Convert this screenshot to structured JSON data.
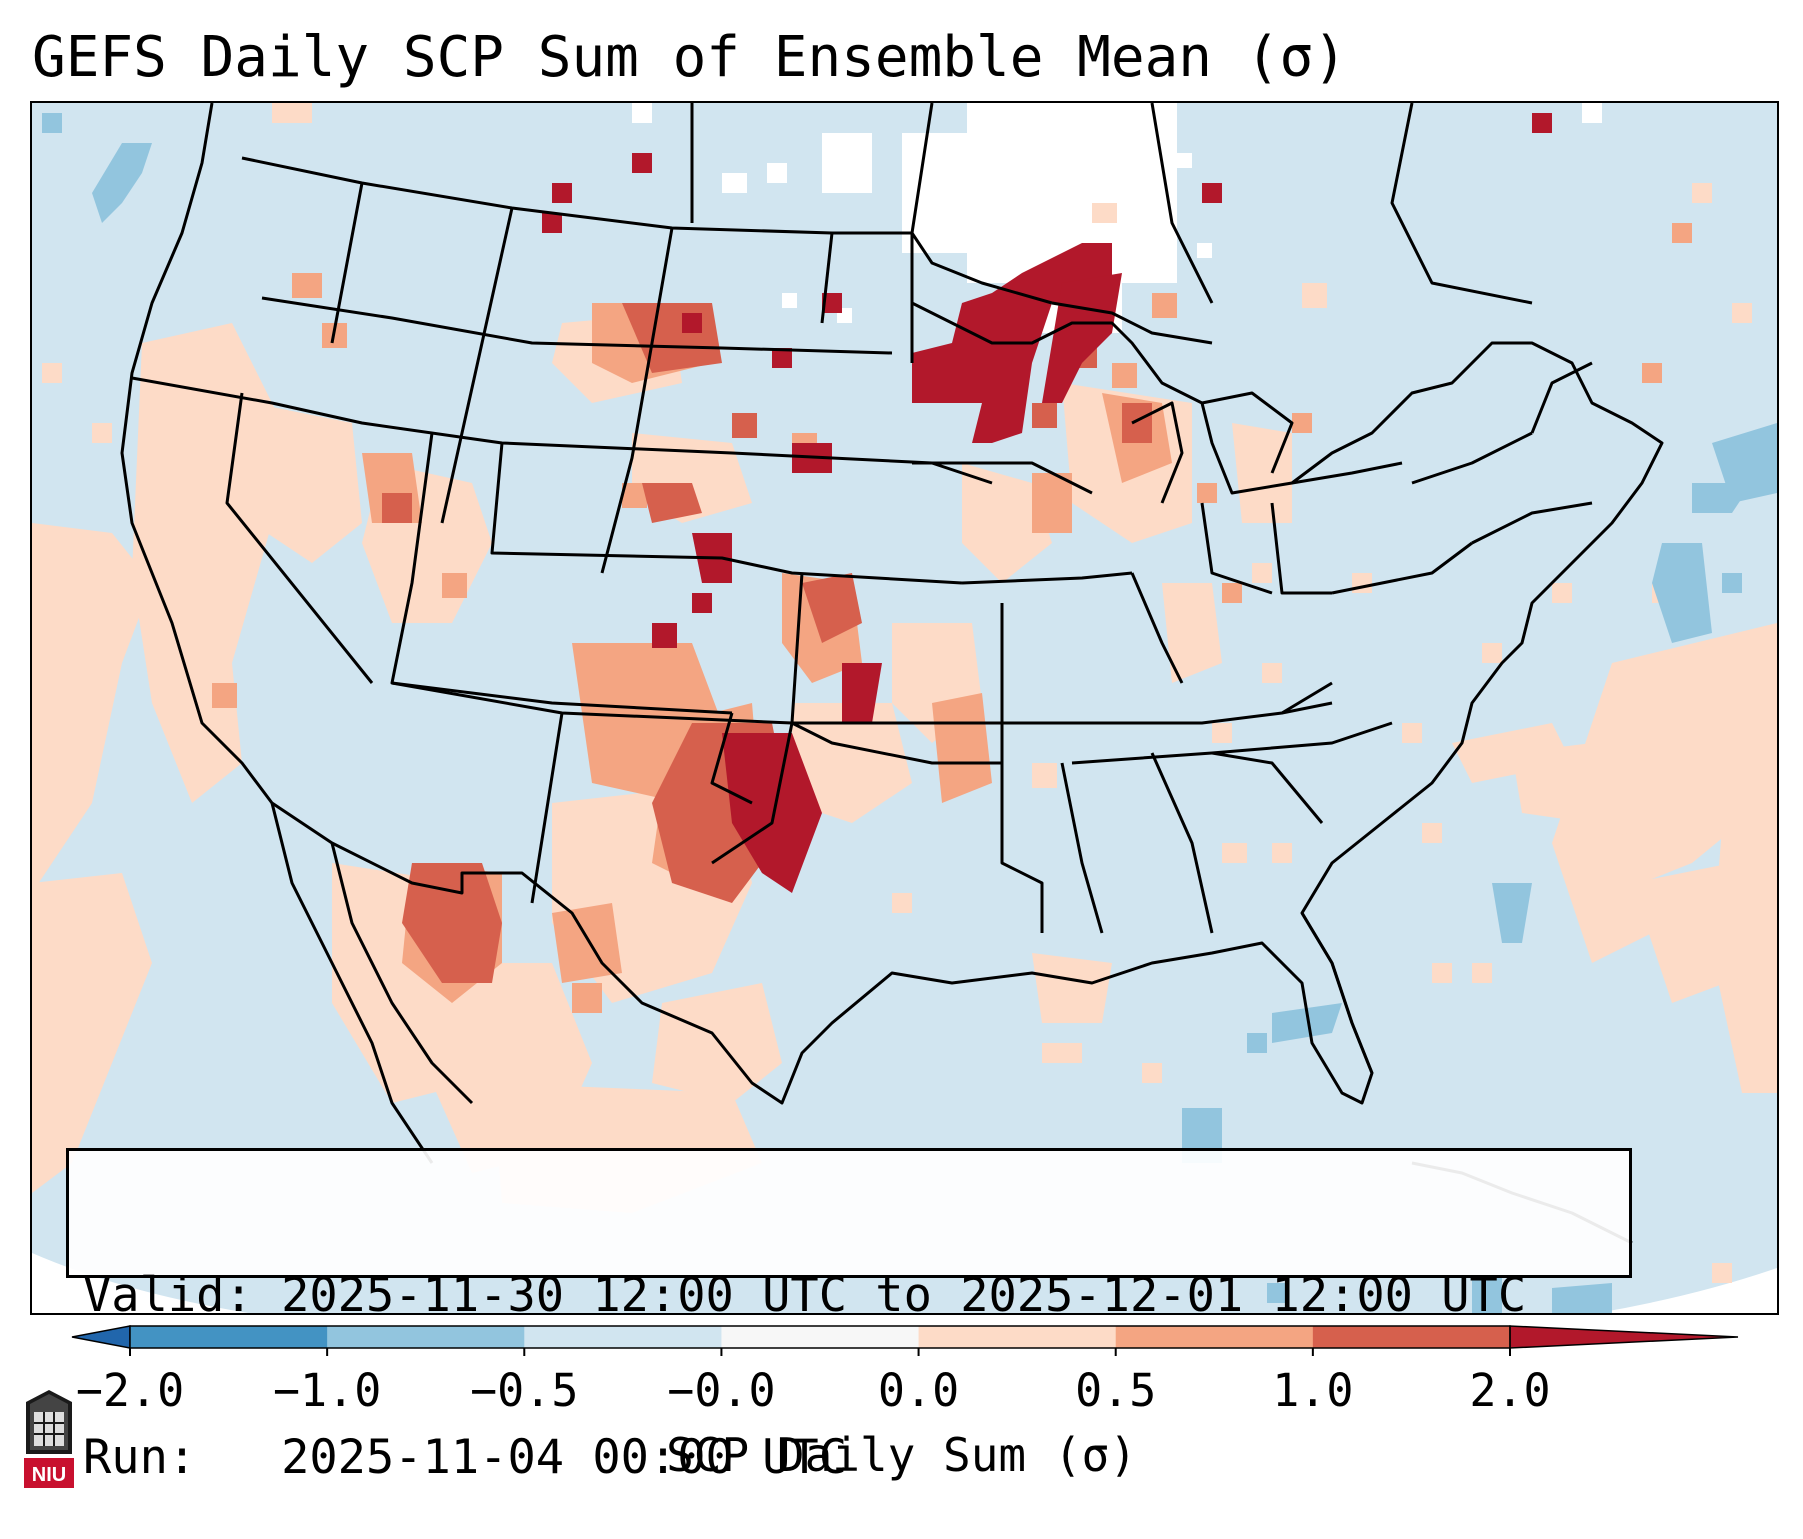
{
  "title": "GEFS Daily SCP Sum of Ensemble Mean (σ)",
  "info": {
    "valid_label": "Valid:",
    "valid_value": "2025-11-30 12:00 UTC to 2025-12-01 12:00 UTC",
    "run_label": "Run:",
    "run_value": "2025-11-04 00:00 UTC"
  },
  "colorbar": {
    "label": "SCP Daily Sum (σ)",
    "ticks": [
      "−2.0",
      "−1.0",
      "−0.5",
      "−0.0",
      "0.0",
      "0.5",
      "1.0",
      "2.0"
    ],
    "bins": [
      {
        "range": "< −2.0",
        "color": "#2166ac"
      },
      {
        "range": "−2.0 to −1.0",
        "color": "#4393c3"
      },
      {
        "range": "−1.0 to −0.5",
        "color": "#92c5de"
      },
      {
        "range": "−0.5 to −0.0",
        "color": "#d1e5f0"
      },
      {
        "range": "−0.0 to 0.0",
        "color": "#f7f7f7"
      },
      {
        "range": "0.0 to 0.5",
        "color": "#fddbc7"
      },
      {
        "range": "0.5 to 1.0",
        "color": "#f4a582"
      },
      {
        "range": "1.0 to 2.0",
        "color": "#d6604d"
      },
      {
        "range": "> 2.0",
        "color": "#b2182b"
      }
    ]
  },
  "logo": {
    "text": "NIU",
    "icon": "niu-logo-icon"
  },
  "map_regions": [
    {
      "area": "Upper Midwest (Minnesota / western Wisconsin)",
      "level": "> 2.0"
    },
    {
      "area": "Western Oklahoma / northwest Texas",
      "level": "> 2.0"
    },
    {
      "area": "Southeast Arizona / southwest New Mexico",
      "level": "1.0 to 2.0"
    },
    {
      "area": "Central Plains (Kansas / eastern Colorado)",
      "level": "0.5 to 2.0"
    },
    {
      "area": "Northern Plains (Montana / South Dakota)",
      "level": "0.5 to 2.0"
    },
    {
      "area": "West Coast and Great Basin",
      "level": "0.0 to 0.5"
    },
    {
      "area": "Canada north of border",
      "level": "−0.0 to 0.0"
    },
    {
      "area": "Western Atlantic and Gulf of Mexico patches",
      "level": "−1.0 to −0.5"
    }
  ]
}
